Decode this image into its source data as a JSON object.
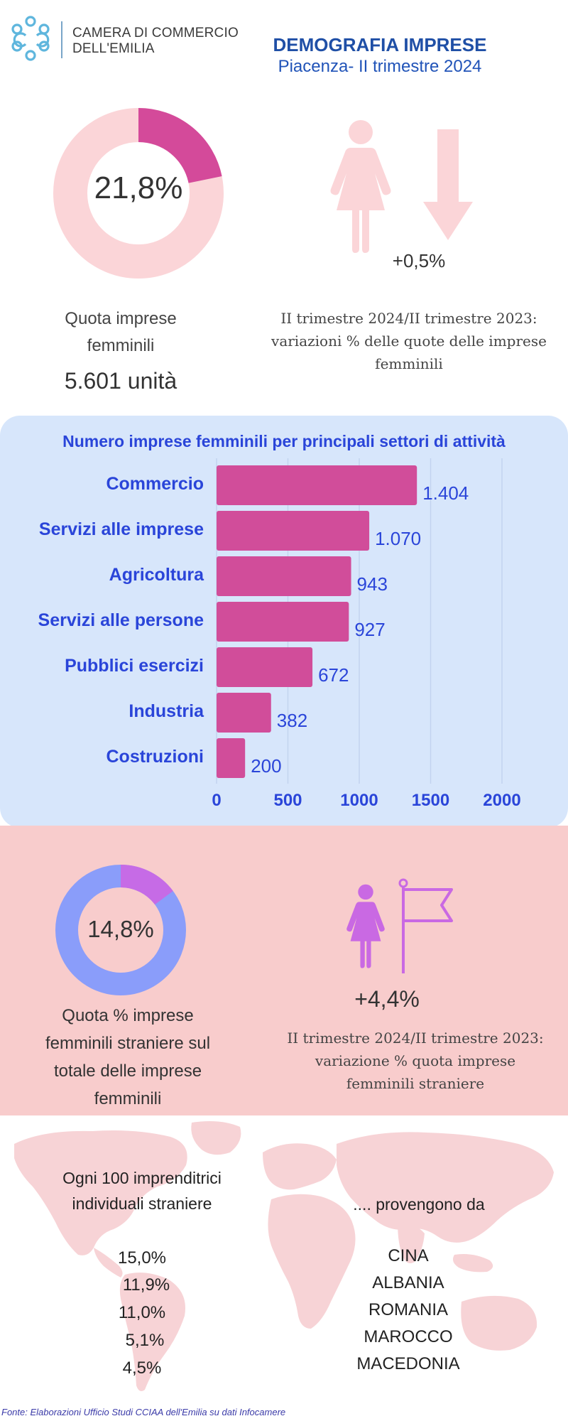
{
  "header": {
    "logo_icon": "chamber-logo-icon",
    "logo_line1": "CAMERA DI COMMERCIO",
    "logo_line2": "DELL'EMILIA",
    "title": "DEMOGRAFIA IMPRESE",
    "subtitle": "Piacenza- II trimestre 2024"
  },
  "female_share": {
    "value_label": "21,8%",
    "value": 21.8,
    "label_line1": "Quota imprese",
    "label_line2": "femminili",
    "units": "5.601 unità",
    "colors": {
      "fill": "#d44a9a",
      "track": "#fbd5d8"
    }
  },
  "female_variation": {
    "icons": [
      "woman-icon",
      "arrow-down-icon"
    ],
    "value": "+0,5%",
    "desc_line1": "II trimestre 2024/II trimestre 2023:",
    "desc_line2": "variazioni % delle quote delle imprese",
    "desc_line3": "femminili"
  },
  "chart_data": {
    "type": "bar",
    "orientation": "horizontal",
    "title": "Numero imprese femminili per principali settori di attività",
    "categories": [
      "Commercio",
      "Servizi alle imprese",
      "Agricoltura",
      "Servizi alle persone",
      "Pubblici esercizi",
      "Industria",
      "Costruzioni"
    ],
    "values": [
      1404,
      1070,
      943,
      927,
      672,
      382,
      200
    ],
    "value_labels": [
      "1.404",
      "1.070",
      "943",
      "927",
      "672",
      "382",
      "200"
    ],
    "xlim": [
      0,
      2000
    ],
    "x_ticks": [
      "0",
      "500",
      "1000",
      "1500",
      "2000"
    ],
    "x_tick_values": [
      0,
      500,
      1000,
      1500,
      2000
    ],
    "grid": true,
    "colors": {
      "bar": "#d14d9a",
      "label": "#2a45d9"
    }
  },
  "foreign_share": {
    "value_label": "14,8%",
    "value": 14.8,
    "label_line1": "Quota  % imprese",
    "label_line2": "femminili straniere sul",
    "label_line3": "totale delle imprese",
    "label_line4": "femminili",
    "colors": {
      "fill": "#c66be6",
      "track": "#8a9dfa"
    }
  },
  "foreign_variation": {
    "icons": [
      "woman-icon",
      "flag-icon"
    ],
    "value": "+4,4%",
    "desc_line1": "II trimestre 2024/II trimestre 2023:",
    "desc_line2": "variazione % quota imprese",
    "desc_line3": "femminili straniere"
  },
  "origins": {
    "background_icon": "world-map-icon",
    "label_line1": "Ogni 100 imprenditrici",
    "label_line2": "individuali straniere",
    "provengono": ".... provengono da",
    "percentages": [
      "15,0%",
      "11,9%",
      "11,0%",
      "5,1%",
      "4,5%"
    ],
    "countries": [
      "CINA",
      "ALBANIA",
      "ROMANIA",
      "MAROCCO",
      "MACEDONIA"
    ]
  },
  "footer": {
    "fonte": "Fonte: Elaborazioni Ufficio Studi CCIAA dell'Emilia su dati Infocamere"
  }
}
